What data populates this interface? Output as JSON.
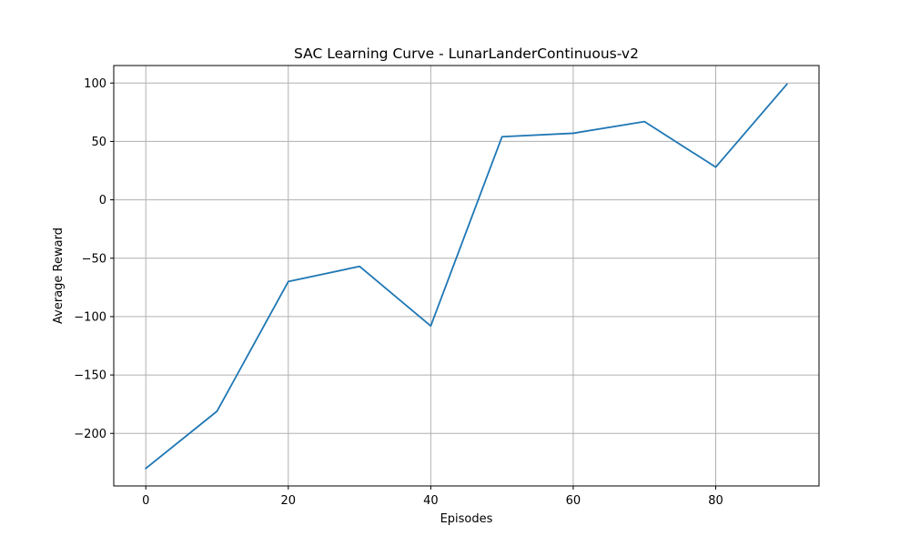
{
  "chart_data": {
    "type": "line",
    "title": "SAC Learning Curve - LunarLanderContinuous-v2",
    "xlabel": "Episodes",
    "ylabel": "Average Reward",
    "xlim": [
      -4.5,
      94.5
    ],
    "ylim": [
      -245,
      115
    ],
    "x_ticks": [
      0,
      20,
      40,
      60,
      80
    ],
    "y_ticks": [
      -200,
      -150,
      -100,
      -50,
      0,
      50,
      100
    ],
    "x_tick_labels": [
      "0",
      "20",
      "40",
      "60",
      "80"
    ],
    "y_tick_labels": [
      "−200",
      "−150",
      "−100",
      "−50",
      "0",
      "50",
      "100"
    ],
    "grid": true,
    "series": [
      {
        "color": "#1f77b4",
        "x": [
          0,
          10,
          20,
          30,
          40,
          50,
          60,
          70,
          80,
          90
        ],
        "y": [
          -230,
          -181,
          -70,
          -57,
          -108,
          54,
          57,
          67,
          28,
          99
        ]
      }
    ]
  }
}
